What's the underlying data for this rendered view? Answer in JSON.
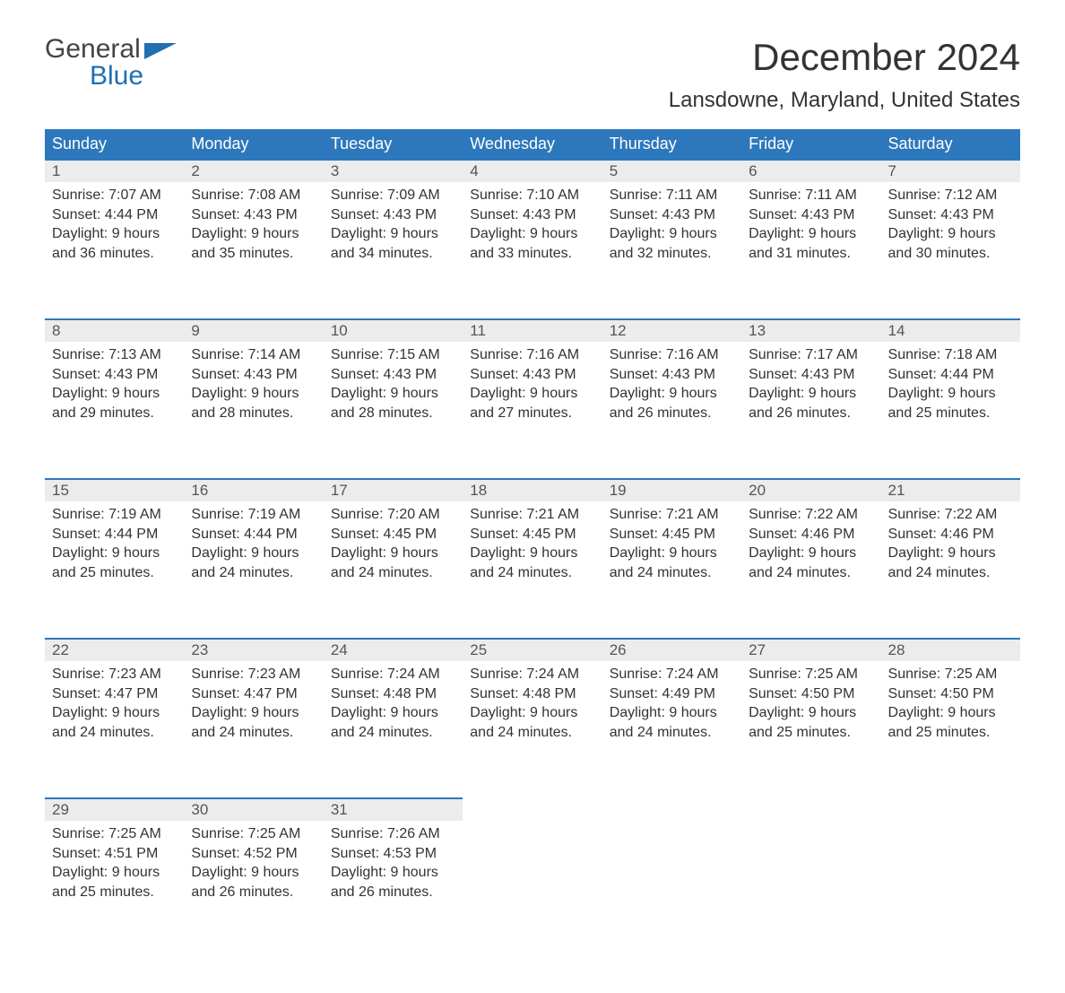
{
  "logo": {
    "word1": "General",
    "word2": "Blue"
  },
  "title": "December 2024",
  "location": "Lansdowne, Maryland, United States",
  "day_headers": [
    "Sunday",
    "Monday",
    "Tuesday",
    "Wednesday",
    "Thursday",
    "Friday",
    "Saturday"
  ],
  "colors": {
    "header_bg": "#2d78bc",
    "header_text": "#ffffff",
    "daynum_bg": "#ececec",
    "rule": "#2d78bc",
    "text": "#333333",
    "logo_accent": "#1f6fb2"
  },
  "fonts": {
    "title_size_pt": 32,
    "location_size_pt": 18,
    "header_size_pt": 14,
    "body_size_pt": 12
  },
  "weeks": [
    [
      {
        "n": "1",
        "sr": "Sunrise: 7:07 AM",
        "ss": "Sunset: 4:44 PM",
        "d1": "Daylight: 9 hours",
        "d2": "and 36 minutes."
      },
      {
        "n": "2",
        "sr": "Sunrise: 7:08 AM",
        "ss": "Sunset: 4:43 PM",
        "d1": "Daylight: 9 hours",
        "d2": "and 35 minutes."
      },
      {
        "n": "3",
        "sr": "Sunrise: 7:09 AM",
        "ss": "Sunset: 4:43 PM",
        "d1": "Daylight: 9 hours",
        "d2": "and 34 minutes."
      },
      {
        "n": "4",
        "sr": "Sunrise: 7:10 AM",
        "ss": "Sunset: 4:43 PM",
        "d1": "Daylight: 9 hours",
        "d2": "and 33 minutes."
      },
      {
        "n": "5",
        "sr": "Sunrise: 7:11 AM",
        "ss": "Sunset: 4:43 PM",
        "d1": "Daylight: 9 hours",
        "d2": "and 32 minutes."
      },
      {
        "n": "6",
        "sr": "Sunrise: 7:11 AM",
        "ss": "Sunset: 4:43 PM",
        "d1": "Daylight: 9 hours",
        "d2": "and 31 minutes."
      },
      {
        "n": "7",
        "sr": "Sunrise: 7:12 AM",
        "ss": "Sunset: 4:43 PM",
        "d1": "Daylight: 9 hours",
        "d2": "and 30 minutes."
      }
    ],
    [
      {
        "n": "8",
        "sr": "Sunrise: 7:13 AM",
        "ss": "Sunset: 4:43 PM",
        "d1": "Daylight: 9 hours",
        "d2": "and 29 minutes."
      },
      {
        "n": "9",
        "sr": "Sunrise: 7:14 AM",
        "ss": "Sunset: 4:43 PM",
        "d1": "Daylight: 9 hours",
        "d2": "and 28 minutes."
      },
      {
        "n": "10",
        "sr": "Sunrise: 7:15 AM",
        "ss": "Sunset: 4:43 PM",
        "d1": "Daylight: 9 hours",
        "d2": "and 28 minutes."
      },
      {
        "n": "11",
        "sr": "Sunrise: 7:16 AM",
        "ss": "Sunset: 4:43 PM",
        "d1": "Daylight: 9 hours",
        "d2": "and 27 minutes."
      },
      {
        "n": "12",
        "sr": "Sunrise: 7:16 AM",
        "ss": "Sunset: 4:43 PM",
        "d1": "Daylight: 9 hours",
        "d2": "and 26 minutes."
      },
      {
        "n": "13",
        "sr": "Sunrise: 7:17 AM",
        "ss": "Sunset: 4:43 PM",
        "d1": "Daylight: 9 hours",
        "d2": "and 26 minutes."
      },
      {
        "n": "14",
        "sr": "Sunrise: 7:18 AM",
        "ss": "Sunset: 4:44 PM",
        "d1": "Daylight: 9 hours",
        "d2": "and 25 minutes."
      }
    ],
    [
      {
        "n": "15",
        "sr": "Sunrise: 7:19 AM",
        "ss": "Sunset: 4:44 PM",
        "d1": "Daylight: 9 hours",
        "d2": "and 25 minutes."
      },
      {
        "n": "16",
        "sr": "Sunrise: 7:19 AM",
        "ss": "Sunset: 4:44 PM",
        "d1": "Daylight: 9 hours",
        "d2": "and 24 minutes."
      },
      {
        "n": "17",
        "sr": "Sunrise: 7:20 AM",
        "ss": "Sunset: 4:45 PM",
        "d1": "Daylight: 9 hours",
        "d2": "and 24 minutes."
      },
      {
        "n": "18",
        "sr": "Sunrise: 7:21 AM",
        "ss": "Sunset: 4:45 PM",
        "d1": "Daylight: 9 hours",
        "d2": "and 24 minutes."
      },
      {
        "n": "19",
        "sr": "Sunrise: 7:21 AM",
        "ss": "Sunset: 4:45 PM",
        "d1": "Daylight: 9 hours",
        "d2": "and 24 minutes."
      },
      {
        "n": "20",
        "sr": "Sunrise: 7:22 AM",
        "ss": "Sunset: 4:46 PM",
        "d1": "Daylight: 9 hours",
        "d2": "and 24 minutes."
      },
      {
        "n": "21",
        "sr": "Sunrise: 7:22 AM",
        "ss": "Sunset: 4:46 PM",
        "d1": "Daylight: 9 hours",
        "d2": "and 24 minutes."
      }
    ],
    [
      {
        "n": "22",
        "sr": "Sunrise: 7:23 AM",
        "ss": "Sunset: 4:47 PM",
        "d1": "Daylight: 9 hours",
        "d2": "and 24 minutes."
      },
      {
        "n": "23",
        "sr": "Sunrise: 7:23 AM",
        "ss": "Sunset: 4:47 PM",
        "d1": "Daylight: 9 hours",
        "d2": "and 24 minutes."
      },
      {
        "n": "24",
        "sr": "Sunrise: 7:24 AM",
        "ss": "Sunset: 4:48 PM",
        "d1": "Daylight: 9 hours",
        "d2": "and 24 minutes."
      },
      {
        "n": "25",
        "sr": "Sunrise: 7:24 AM",
        "ss": "Sunset: 4:48 PM",
        "d1": "Daylight: 9 hours",
        "d2": "and 24 minutes."
      },
      {
        "n": "26",
        "sr": "Sunrise: 7:24 AM",
        "ss": "Sunset: 4:49 PM",
        "d1": "Daylight: 9 hours",
        "d2": "and 24 minutes."
      },
      {
        "n": "27",
        "sr": "Sunrise: 7:25 AM",
        "ss": "Sunset: 4:50 PM",
        "d1": "Daylight: 9 hours",
        "d2": "and 25 minutes."
      },
      {
        "n": "28",
        "sr": "Sunrise: 7:25 AM",
        "ss": "Sunset: 4:50 PM",
        "d1": "Daylight: 9 hours",
        "d2": "and 25 minutes."
      }
    ],
    [
      {
        "n": "29",
        "sr": "Sunrise: 7:25 AM",
        "ss": "Sunset: 4:51 PM",
        "d1": "Daylight: 9 hours",
        "d2": "and 25 minutes."
      },
      {
        "n": "30",
        "sr": "Sunrise: 7:25 AM",
        "ss": "Sunset: 4:52 PM",
        "d1": "Daylight: 9 hours",
        "d2": "and 26 minutes."
      },
      {
        "n": "31",
        "sr": "Sunrise: 7:26 AM",
        "ss": "Sunset: 4:53 PM",
        "d1": "Daylight: 9 hours",
        "d2": "and 26 minutes."
      },
      null,
      null,
      null,
      null
    ]
  ]
}
